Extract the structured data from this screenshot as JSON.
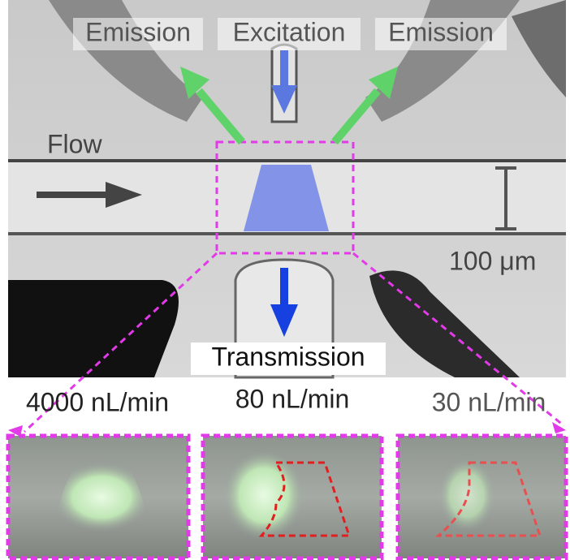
{
  "top_labels": [
    "Emission",
    "Excitation",
    "Emission"
  ],
  "flow_label": "Flow",
  "scale_label": "100 μm",
  "transmission_label": "Transmission",
  "panels": [
    {
      "label": "4000 nL/min"
    },
    {
      "label": "80 nL/min"
    },
    {
      "label": "30 nL/min"
    }
  ]
}
